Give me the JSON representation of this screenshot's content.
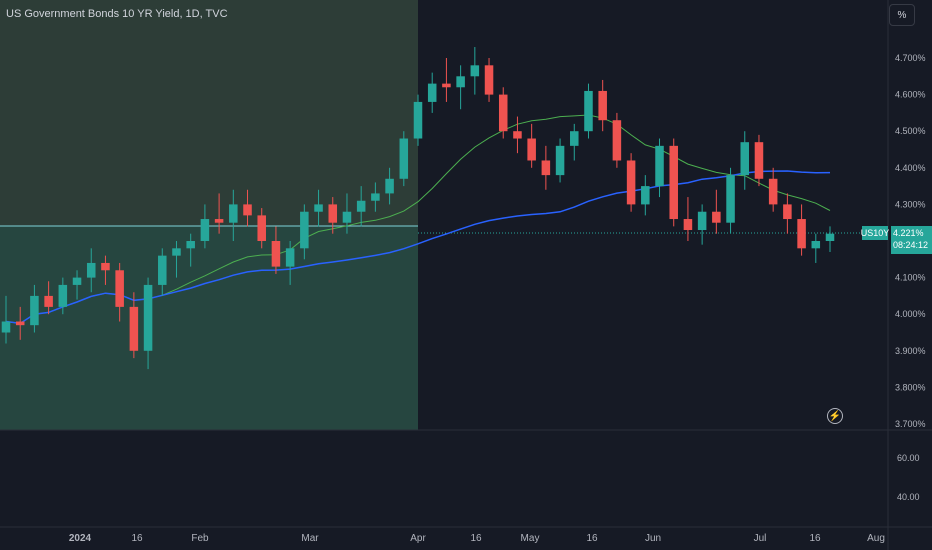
{
  "header": {
    "title": "US Government Bonds 10 YR Yield, 1D, TVC"
  },
  "scale_button": {
    "label": "%"
  },
  "price_tag": {
    "symbol": "US10Y",
    "value": "4.221%",
    "countdown": "08:24:12"
  },
  "chart_data": {
    "type": "candlestick",
    "title": "US Government Bonds 10 YR Yield, 1D, TVC",
    "y_axis_labels": [
      "4.700%",
      "4.600%",
      "4.500%",
      "4.400%",
      "4.300%",
      "4.200%",
      "4.100%",
      "4.000%",
      "3.900%",
      "3.800%",
      "3.700%"
    ],
    "y_range": [
      3.7,
      4.72
    ],
    "indicator_axis_labels": [
      "60.00",
      "40.00"
    ],
    "x_axis_labels": [
      "2024",
      "16",
      "Feb",
      "Mar",
      "Apr",
      "16",
      "May",
      "16",
      "Jun",
      "Jul",
      "16",
      "Aug"
    ],
    "colors": {
      "up": "#26a69a",
      "down": "#ef5350",
      "ma_fast": "#4caf50",
      "ma_slow": "#2962ff",
      "shade_left": "#2b4b45",
      "shade_right": "#161a25"
    },
    "candles": [
      [
        3.95,
        4.05,
        3.92,
        3.98
      ],
      [
        3.98,
        4.02,
        3.93,
        3.97
      ],
      [
        3.97,
        4.08,
        3.95,
        4.05
      ],
      [
        4.05,
        4.09,
        4.0,
        4.02
      ],
      [
        4.02,
        4.1,
        4.0,
        4.08
      ],
      [
        4.08,
        4.12,
        4.04,
        4.1
      ],
      [
        4.1,
        4.18,
        4.06,
        4.14
      ],
      [
        4.14,
        4.16,
        4.08,
        4.12
      ],
      [
        4.12,
        4.14,
        3.98,
        4.02
      ],
      [
        4.02,
        4.06,
        3.88,
        3.9
      ],
      [
        3.9,
        4.1,
        3.85,
        4.08
      ],
      [
        4.08,
        4.18,
        4.05,
        4.16
      ],
      [
        4.16,
        4.2,
        4.1,
        4.18
      ],
      [
        4.18,
        4.22,
        4.13,
        4.2
      ],
      [
        4.2,
        4.3,
        4.18,
        4.26
      ],
      [
        4.26,
        4.33,
        4.22,
        4.25
      ],
      [
        4.25,
        4.34,
        4.2,
        4.3
      ],
      [
        4.3,
        4.34,
        4.24,
        4.27
      ],
      [
        4.27,
        4.29,
        4.18,
        4.2
      ],
      [
        4.2,
        4.24,
        4.11,
        4.13
      ],
      [
        4.13,
        4.2,
        4.08,
        4.18
      ],
      [
        4.18,
        4.3,
        4.15,
        4.28
      ],
      [
        4.28,
        4.34,
        4.24,
        4.3
      ],
      [
        4.3,
        4.32,
        4.22,
        4.25
      ],
      [
        4.25,
        4.33,
        4.22,
        4.28
      ],
      [
        4.28,
        4.35,
        4.24,
        4.31
      ],
      [
        4.31,
        4.36,
        4.28,
        4.33
      ],
      [
        4.33,
        4.4,
        4.3,
        4.37
      ],
      [
        4.37,
        4.5,
        4.35,
        4.48
      ],
      [
        4.48,
        4.6,
        4.46,
        4.58
      ],
      [
        4.58,
        4.66,
        4.55,
        4.63
      ],
      [
        4.63,
        4.7,
        4.58,
        4.62
      ],
      [
        4.62,
        4.68,
        4.56,
        4.65
      ],
      [
        4.65,
        4.73,
        4.6,
        4.68
      ],
      [
        4.68,
        4.7,
        4.58,
        4.6
      ],
      [
        4.6,
        4.62,
        4.48,
        4.5
      ],
      [
        4.5,
        4.54,
        4.44,
        4.48
      ],
      [
        4.48,
        4.52,
        4.4,
        4.42
      ],
      [
        4.42,
        4.46,
        4.34,
        4.38
      ],
      [
        4.38,
        4.48,
        4.36,
        4.46
      ],
      [
        4.46,
        4.52,
        4.42,
        4.5
      ],
      [
        4.5,
        4.63,
        4.48,
        4.61
      ],
      [
        4.61,
        4.64,
        4.5,
        4.53
      ],
      [
        4.53,
        4.55,
        4.4,
        4.42
      ],
      [
        4.42,
        4.44,
        4.28,
        4.3
      ],
      [
        4.3,
        4.38,
        4.27,
        4.35
      ],
      [
        4.35,
        4.48,
        4.32,
        4.46
      ],
      [
        4.46,
        4.48,
        4.24,
        4.26
      ],
      [
        4.26,
        4.32,
        4.2,
        4.23
      ],
      [
        4.23,
        4.3,
        4.19,
        4.28
      ],
      [
        4.28,
        4.34,
        4.22,
        4.25
      ],
      [
        4.25,
        4.4,
        4.22,
        4.38
      ],
      [
        4.38,
        4.5,
        4.34,
        4.47
      ],
      [
        4.47,
        4.49,
        4.35,
        4.37
      ],
      [
        4.37,
        4.4,
        4.28,
        4.3
      ],
      [
        4.3,
        4.33,
        4.22,
        4.26
      ],
      [
        4.26,
        4.3,
        4.16,
        4.18
      ],
      [
        4.18,
        4.22,
        4.14,
        4.2
      ],
      [
        4.2,
        4.24,
        4.17,
        4.22
      ]
    ]
  }
}
